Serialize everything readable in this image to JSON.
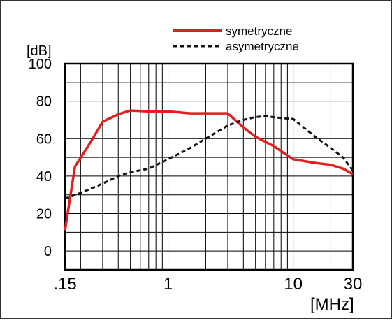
{
  "chart_data": {
    "type": "line",
    "xlabel": "[MHz]",
    "ylabel": "[dB]",
    "x_scale": "log",
    "xlim": [
      0.15,
      30
    ],
    "ylim": [
      -10,
      100
    ],
    "x_ticks": [
      {
        "value": 0.15,
        "label": ".15"
      },
      {
        "value": 1,
        "label": "1"
      },
      {
        "value": 10,
        "label": "10"
      },
      {
        "value": 30,
        "label": "30"
      }
    ],
    "y_ticks": [
      0,
      20,
      40,
      60,
      80,
      100
    ],
    "grid": true,
    "legend_position": "top",
    "series": [
      {
        "name": "symetryczne",
        "color": "#e41e1e",
        "style": "solid",
        "points": [
          [
            0.15,
            11
          ],
          [
            0.18,
            45
          ],
          [
            0.25,
            60
          ],
          [
            0.3,
            69
          ],
          [
            0.4,
            73
          ],
          [
            0.5,
            75
          ],
          [
            0.7,
            74.5
          ],
          [
            1.0,
            74.5
          ],
          [
            1.5,
            73.5
          ],
          [
            2.0,
            73.5
          ],
          [
            3.0,
            73.5
          ],
          [
            4.0,
            66
          ],
          [
            5.0,
            61
          ],
          [
            7.0,
            56
          ],
          [
            10.0,
            49
          ],
          [
            15.0,
            47
          ],
          [
            20.0,
            46
          ],
          [
            25.0,
            44
          ],
          [
            30.0,
            41
          ]
        ]
      },
      {
        "name": "asymetryczne",
        "color": "#111111",
        "style": "dashed",
        "points": [
          [
            0.15,
            28
          ],
          [
            0.2,
            31
          ],
          [
            0.3,
            36
          ],
          [
            0.4,
            40
          ],
          [
            0.5,
            42
          ],
          [
            0.7,
            44
          ],
          [
            1.0,
            49
          ],
          [
            1.5,
            55
          ],
          [
            2.0,
            60
          ],
          [
            3.0,
            67
          ],
          [
            4.0,
            70
          ],
          [
            5.0,
            71.5
          ],
          [
            6.0,
            72
          ],
          [
            8.0,
            71
          ],
          [
            10.0,
            70.5
          ],
          [
            15.0,
            61
          ],
          [
            20.0,
            55
          ],
          [
            25.0,
            50
          ],
          [
            30.0,
            43
          ]
        ]
      }
    ]
  }
}
